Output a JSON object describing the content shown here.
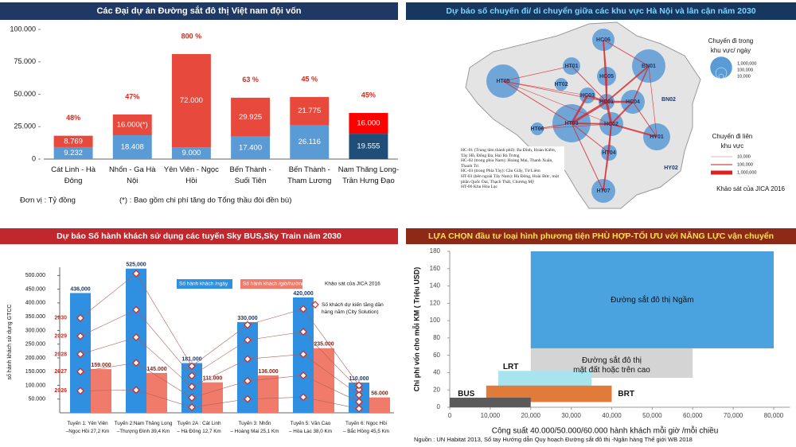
{
  "chart_data": [
    {
      "type": "bar",
      "stacked": true,
      "title": "Các Đại dự án  Đường sắt đô thị Việt nam đội vốn",
      "categories": [
        [
          "Cát Linh - Hà",
          "Đông"
        ],
        [
          "Nhổn - Ga Hà",
          "Nội"
        ],
        [
          "Yên Viên - Ngọc",
          "Hồi"
        ],
        [
          "Bến Thành -",
          "Suối Tiên"
        ],
        [
          "Bến Thành -",
          "Tham Lương"
        ],
        [
          "Nam Thăng Long-",
          "Trần Hưng Đạo"
        ]
      ],
      "series": [
        {
          "colors": [
            "#5b9bd5",
            "#5b9bd5",
            "#5b9bd5",
            "#5b9bd5",
            "#5b9bd5",
            "#1f4e79"
          ],
          "values": [
            9232,
            18408,
            9000,
            17400,
            26116,
            19555
          ],
          "value_labels": [
            "9.232",
            "18.408",
            "9.000",
            "17.400",
            "26.116",
            "19.555"
          ]
        },
        {
          "colors": [
            "#e8493d",
            "#e8493d",
            "#e8493d",
            "#e8493d",
            "#e8493d",
            "#ff0000"
          ],
          "values": [
            8769,
            16000,
            72000,
            29925,
            21775,
            16000
          ],
          "value_labels": [
            "8.769",
            "16.000(*)",
            "72.000",
            "29.925",
            "21.775",
            "16.000"
          ]
        }
      ],
      "annotations": [
        "48%",
        "47%",
        "800 %",
        "63 %",
        "45 %",
        "45%"
      ],
      "ylim": [
        0,
        100000
      ],
      "yticks": [
        0,
        {
          "value": 25000,
          "label": "25.000"
        },
        {
          "value": 50000,
          "label": "50.000"
        },
        {
          "value": 75000,
          "label": "75.000"
        },
        {
          "value": 100000,
          "label": "100.000"
        }
      ],
      "grid": false,
      "unit_note": "Đơn vị :  Tỷ đồng",
      "footnote": "(*) : Bao gồm chi phí tăng do Tổng thầu đòi đền bù)"
    },
    {
      "type": "bar",
      "title": "Dự báo Số hành khách sử dụng các tuyến  Sky BUS,Sky Train năm 2030",
      "ylabel": "số hành khách sử dụng GTCC",
      "categories": [
        [
          "Tuyến 1: Yên Viên",
          "–Ngọc Hồi 27,2 Km"
        ],
        [
          "Tuyến 2:Nam Thăng Long",
          "–Thượng Đình 39,4 Km"
        ],
        [
          "Tuyến 2A : Cát Linh",
          "– Hà Đông 12,7 Km"
        ],
        [
          "Tuyến 3: Nhổn",
          "– Hoàng Mai 25,1 Km"
        ],
        [
          "Tuyến 5: Văn Cao",
          "– Hòa Lạc 38,0 Km"
        ],
        [
          "Tuyến 6: Ngọc Hồi",
          "– Bắc Hồng 45,5 Km"
        ]
      ],
      "series": [
        {
          "name": "Số hành khách /ngày",
          "color": "#2f8fe0",
          "values": [
            436000,
            525000,
            181000,
            330000,
            420000,
            110000
          ],
          "value_labels": [
            "436,000",
            "525,000",
            "181,000",
            "330,000",
            "420,000",
            "110,000"
          ]
        },
        {
          "name": "Số hành khách /giờ/hướng",
          "color": "#f07b6b",
          "values": [
            159000,
            145000,
            111000,
            136000,
            235000,
            56000
          ],
          "value_labels": [
            "159.000",
            "145.000",
            "111.000",
            "136.000",
            "235.000",
            "56.000"
          ]
        },
        {
          "name": "2026",
          "marker": "diamond",
          "color": "#d9261c",
          "values": [
            80000,
            83000,
            20000,
            50000,
            57000,
            15000
          ]
        },
        {
          "name": "2027",
          "marker": "diamond",
          "color": "#d9261c",
          "values": [
            150000,
            182000,
            55000,
            116000,
            136000,
            40000
          ]
        },
        {
          "name": "2028",
          "marker": "diamond",
          "color": "#d9261c",
          "values": [
            213000,
            275000,
            95000,
            196000,
            213000,
            65000
          ]
        },
        {
          "name": "2029",
          "marker": "diamond",
          "color": "#d9261c",
          "values": [
            279000,
            375000,
            135000,
            265000,
            295000,
            85000
          ]
        },
        {
          "name": "2030",
          "marker": "diamond",
          "color": "#d9261c",
          "values": [
            345000,
            507000,
            170000,
            320000,
            378000,
            100000
          ]
        }
      ],
      "marker_legend": [
        "Số khách dự kiến tăng dần",
        "hàng năm (City Solution)"
      ],
      "source": "Khảo sát của JICA 2016",
      "ylim": [
        0,
        530000
      ],
      "yticks": [
        {
          "value": 50000,
          "label": "50.000"
        },
        {
          "value": 100000,
          "label": "100.000"
        },
        {
          "value": 150000,
          "label": "150.000"
        },
        {
          "value": 200000,
          "label": "200.000"
        },
        {
          "value": 250000,
          "label": "250.000"
        },
        {
          "value": 300000,
          "label": "300.000"
        },
        {
          "value": 350000,
          "label": "350.000"
        },
        {
          "value": 400000,
          "label": "400.000"
        },
        {
          "value": 450000,
          "label": "450.000"
        },
        {
          "value": 500000,
          "label": "500.000"
        }
      ]
    },
    {
      "type": "range",
      "title": "LỰA CHỌN đầu tư loại hình phương tiện PHÙ HỢP-TỐI ƯU với NĂNG LỰC vận chuyển",
      "xlabel": "Công suất 40.000/50.000/60.000 hành khách mỗi giờ /mỗi chiều",
      "ylabel": "Chi phí vốn cho mỗi KM ( Triệu USD)",
      "boxes": [
        {
          "label": [
            "Đường sắt đô thị Ngầm"
          ],
          "color": "#4aa3df",
          "x": [
            20000,
            80000
          ],
          "y": [
            68,
            180
          ]
        },
        {
          "label": [
            "Đường sắt đô thị",
            "mặt đất hoặc trên cao"
          ],
          "color": "#d4d4d4",
          "x": [
            20000,
            60000
          ],
          "y": [
            34,
            68
          ]
        },
        {
          "label": [
            "LRT"
          ],
          "color": "#a8e4ee",
          "x": [
            12000,
            35000
          ],
          "y": [
            22,
            42
          ]
        },
        {
          "label": [
            "BRT"
          ],
          "color": "#e07b39",
          "x": [
            9000,
            40000
          ],
          "y": [
            6,
            25
          ]
        },
        {
          "label": [
            "BUS"
          ],
          "color": "#5a5a5a",
          "x": [
            0,
            20000
          ],
          "y": [
            0,
            11
          ]
        }
      ],
      "xlim": [
        0,
        84000
      ],
      "ylim": [
        0,
        180
      ],
      "xticks": [
        0,
        {
          "value": 10000,
          "label": "10,000"
        },
        {
          "value": 20000,
          "label": "20,000"
        },
        {
          "value": 30000,
          "label": "30,000"
        },
        {
          "value": 40000,
          "label": "40,000"
        },
        {
          "value": 50000,
          "label": "50,000"
        },
        {
          "value": 60000,
          "label": "60,000"
        },
        {
          "value": 70000,
          "label": "70,000"
        },
        {
          "value": 80000,
          "label": "80,000"
        }
      ],
      "yticks": [
        0,
        20,
        40,
        60,
        80,
        100,
        120,
        140,
        160,
        180
      ],
      "source": "Nguồn : UN Habitat 2013, Sổ tay Hướng dẫn Quy hoạch Đường sắt đô thị -Ngân hàng Thế giới WB 2018"
    }
  ],
  "map": {
    "title": "Dự báo số chuyến đi/ di chuyển giữa các khu vực  Hà Nội và lân cận năm  2030",
    "nodes": [
      "HC06",
      "HT01",
      "BN01",
      "HT05",
      "HT02",
      "HC05",
      "HC03",
      "HC01",
      "HC04",
      "BN02",
      "HC02",
      "HT03",
      "HT06",
      "HY01",
      "HT04",
      "HY02",
      "HT07"
    ],
    "legend_intra": {
      "title": [
        "Chuyến đi trong",
        "khu vực/ ngày"
      ],
      "items": [
        "1,000,000",
        "100,000",
        "10,000"
      ]
    },
    "legend_inter": {
      "title": [
        "Chuyến đi liên",
        "khu vực"
      ],
      "items": [
        "10,000",
        "100,000",
        "1,000,000"
      ]
    },
    "source": "Khảo sát của JICA 2016",
    "notes": [
      "HC-01 (Trung tâm thành phố): Ba Đình, Hoàn Kiếm, Tây Hồ, Đống Đa, Hai Bà Trưng",
      "HC-02 (trong phía Nam): Hoàng Mai, Thanh Xuân, Thanh Trì",
      "HC-03 (trong Phía Tây): Cầu Giấy, Từ Liêm",
      "HT-03 (bên ngoài Tây Nam): Hà Đông, Hoài Đức, một phần Quốc Oai, Thạch Thất, Chương Mỹ",
      "HT-06 Khu Hòa Lạc"
    ]
  }
}
